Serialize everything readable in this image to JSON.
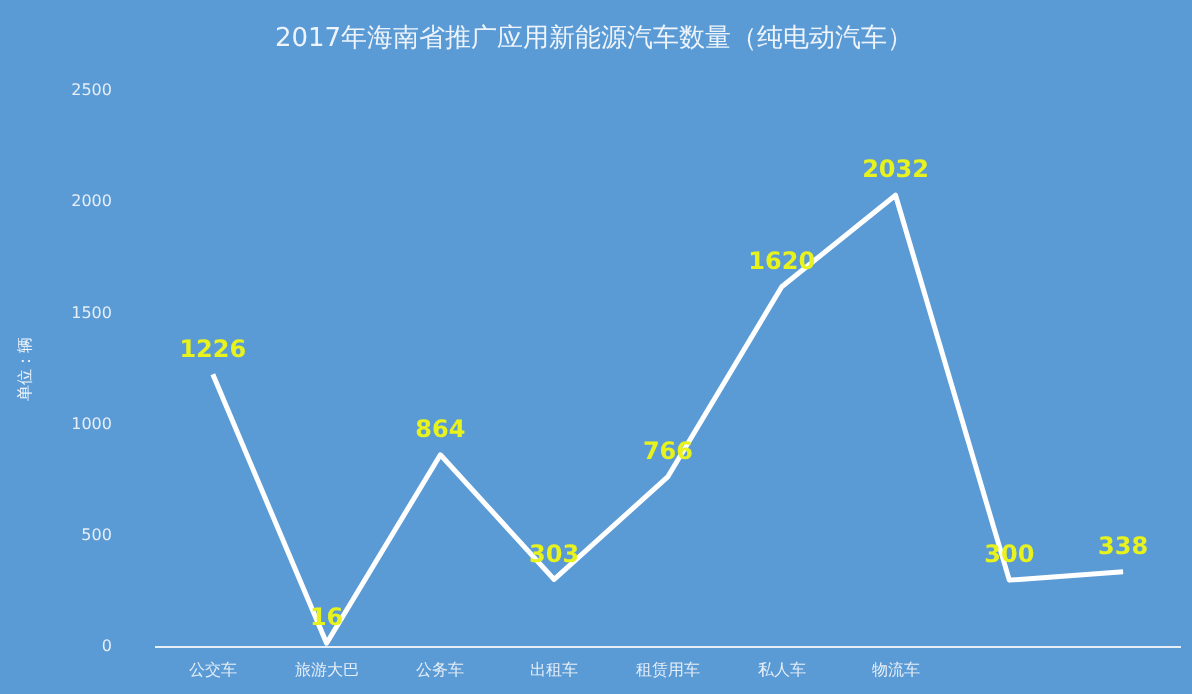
{
  "chart_data": {
    "type": "line",
    "title": "2017年海南省推广应用新能源汽车数量（纯电动汽车）",
    "ylabel": "单位：辆",
    "categories": [
      "公交车",
      "旅游大巴",
      "公务车",
      "出租车",
      "租赁用车",
      "私人车",
      "物流车",
      null,
      null
    ],
    "series": [
      {
        "color": "#ffffff",
        "values": [
          1226,
          16,
          864,
          303,
          766,
          1620,
          2032,
          300,
          338
        ]
      }
    ],
    "ylim": [
      0,
      2500
    ],
    "yticks": [
      0,
      500,
      1000,
      1500,
      2000,
      2500
    ],
    "grid": false,
    "legend": false,
    "marker": "none",
    "line_style": "solid",
    "data_labels": true
  }
}
